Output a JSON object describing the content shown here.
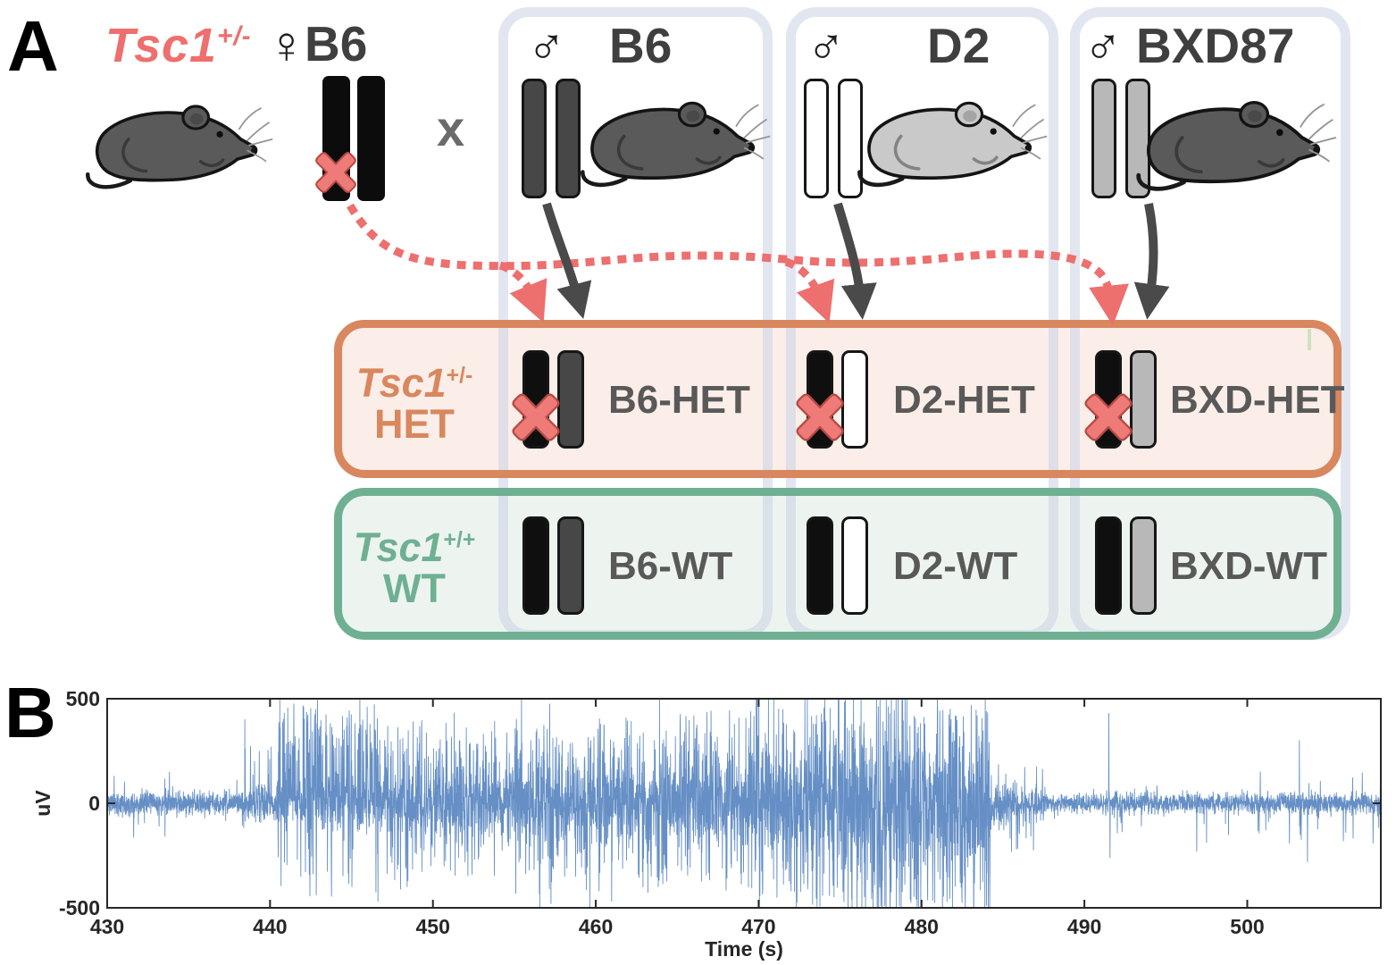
{
  "panel_labels": {
    "a": "A",
    "b": "B"
  },
  "colors": {
    "red": "#ed6f6e",
    "red_dark": "#b84a44",
    "orange": "#d8875f",
    "het_fill": "#fbeee8",
    "green": "#6fb093",
    "wt_fill": "#edf4f0",
    "dark_text": "#3f3f3f",
    "mid_text": "#595959",
    "b6_chrom": "#474747",
    "d2_chrom": "#ffffff",
    "bxd_chrom": "#b8b8b8",
    "dark_mouse": "#5a5a5a",
    "light_mouse": "#c9c9c9",
    "arrow_dark": "#4a4a4a",
    "axis": "#262626"
  },
  "female": {
    "gene": "Tsc1",
    "gene_sup": "+/-",
    "sex_symbol": "♀",
    "strain": "B6"
  },
  "cross_symbol": "x",
  "males": [
    {
      "sex_symbol": "♂",
      "strain": "B6"
    },
    {
      "sex_symbol": "♂",
      "strain": "D2"
    },
    {
      "sex_symbol": "♂",
      "strain": "BXD87"
    }
  ],
  "het_box": {
    "gene": "Tsc1",
    "sup": "+/-",
    "label": "HET",
    "offspring": [
      "B6-HET",
      "D2-HET",
      "BXD-HET"
    ]
  },
  "wt_box": {
    "gene": "Tsc1",
    "sup": "+/+",
    "label": "WT",
    "offspring": [
      "B6-WT",
      "D2-WT",
      "BXD-WT"
    ]
  },
  "chart_data": {
    "type": "line",
    "title": "",
    "xlabel": "Time (s)",
    "ylabel": "uV",
    "xlim": [
      430,
      508.2
    ],
    "ylim": [
      -500,
      500
    ],
    "xticks": [
      430,
      440,
      450,
      460,
      470,
      480,
      490,
      500
    ],
    "yticks": [
      -500,
      0,
      500
    ],
    "grid": false,
    "legend": null,
    "line_color": "#3a6fb5",
    "description": "Single-channel EEG trace: low-amplitude baseline 430-438 s, spiking onset ~439 s, sustained high-amplitude ictal activity 440-484 s clipping near ±500 uV, abrupt seizure offset ~484.5 s, post-ictal low-amplitude activity with an isolated artifact spike near 491.5 s",
    "signal": {
      "seed": 11,
      "sample_rate_hz": 80,
      "segments": [
        {
          "t0": 430.0,
          "t1": 438.3,
          "amp": 55,
          "spike_prob": 0.02,
          "spike_amp": 150,
          "bias": 0
        },
        {
          "t0": 438.3,
          "t1": 440.4,
          "amp": 85,
          "spike_prob": 0.06,
          "spike_amp": 260,
          "bias": 0.2
        },
        {
          "t0": 440.4,
          "t1": 443.2,
          "amp": 120,
          "spike_prob": 0.3,
          "spike_amp": 430,
          "bias": 0.55
        },
        {
          "t0": 443.2,
          "t1": 446.8,
          "amp": 140,
          "spike_prob": 0.3,
          "spike_amp": 400,
          "bias": 0.45
        },
        {
          "t0": 446.8,
          "t1": 449.8,
          "amp": 140,
          "spike_prob": 0.22,
          "spike_amp": 330,
          "bias": 0.2
        },
        {
          "t0": 449.8,
          "t1": 455.0,
          "amp": 160,
          "spike_prob": 0.22,
          "spike_amp": 300,
          "bias": 0.1
        },
        {
          "t0": 455.0,
          "t1": 462.0,
          "amp": 180,
          "spike_prob": 0.26,
          "spike_amp": 330,
          "bias": 0
        },
        {
          "t0": 462.0,
          "t1": 469.5,
          "amp": 185,
          "spike_prob": 0.26,
          "spike_amp": 330,
          "bias": 0.1
        },
        {
          "t0": 469.5,
          "t1": 477.0,
          "amp": 220,
          "spike_prob": 0.34,
          "spike_amp": 420,
          "bias": 0
        },
        {
          "t0": 477.0,
          "t1": 484.2,
          "amp": 260,
          "spike_prob": 0.4,
          "spike_amp": 460,
          "bias": -0.05
        },
        {
          "t0": 484.2,
          "t1": 485.2,
          "amp": 120,
          "spike_prob": 0.1,
          "spike_amp": 200,
          "bias": -0.3
        },
        {
          "t0": 485.2,
          "t1": 487.6,
          "amp": 75,
          "spike_prob": 0.1,
          "spike_amp": 220,
          "bias": -0.5
        },
        {
          "t0": 487.6,
          "t1": 491.4,
          "amp": 40,
          "spike_prob": 0.02,
          "spike_amp": 90,
          "bias": 0
        },
        {
          "t0": 491.4,
          "t1": 492.0,
          "amp": 60,
          "spike_prob": 0.0,
          "spike_amp": 0,
          "bias": 0
        },
        {
          "t0": 492.0,
          "t1": 508.2,
          "amp": 50,
          "spike_prob": 0.035,
          "spike_amp": 160,
          "bias": -0.15
        }
      ],
      "events": [
        {
          "t": 438.45,
          "uv": 400
        },
        {
          "t": 457.25,
          "uv": -480
        },
        {
          "t": 491.5,
          "uv": 430
        },
        {
          "t": 491.58,
          "uv": -260
        },
        {
          "t": 496.9,
          "uv": -230
        },
        {
          "t": 503.2,
          "uv": 300
        },
        {
          "t": 503.7,
          "uv": -280
        },
        {
          "t": 505.9,
          "uv": -180
        }
      ]
    }
  }
}
